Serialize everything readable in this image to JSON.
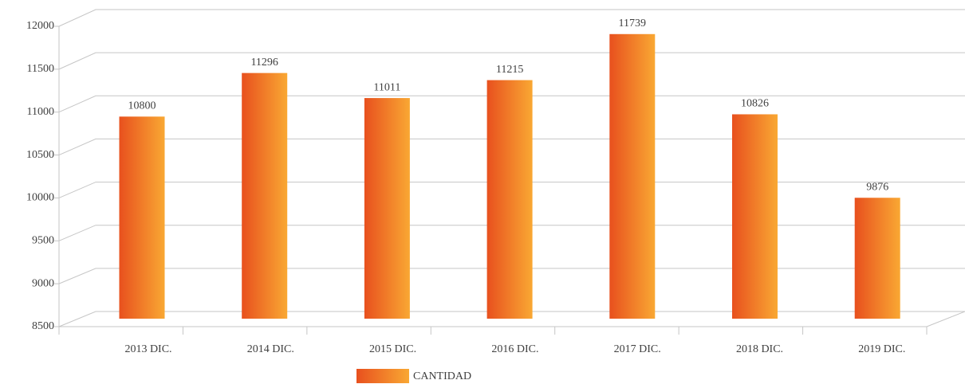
{
  "chart_data": {
    "type": "bar",
    "categories": [
      "2013 DIC.",
      "2014 DIC.",
      "2015 DIC.",
      "2016 DIC.",
      "2017 DIC.",
      "2018 DIC.",
      "2019 DIC."
    ],
    "series": [
      {
        "name": "CANTIDAD",
        "color": [
          "#e8501e",
          "#f9a833"
        ],
        "values": [
          10800,
          11296,
          11011,
          11215,
          11739,
          10826,
          9876
        ]
      }
    ],
    "ylim": [
      8500,
      12000
    ],
    "yticks": [
      8500,
      9000,
      9500,
      10000,
      10500,
      11000,
      11500,
      12000
    ],
    "grid": true,
    "legend": "bottom"
  }
}
